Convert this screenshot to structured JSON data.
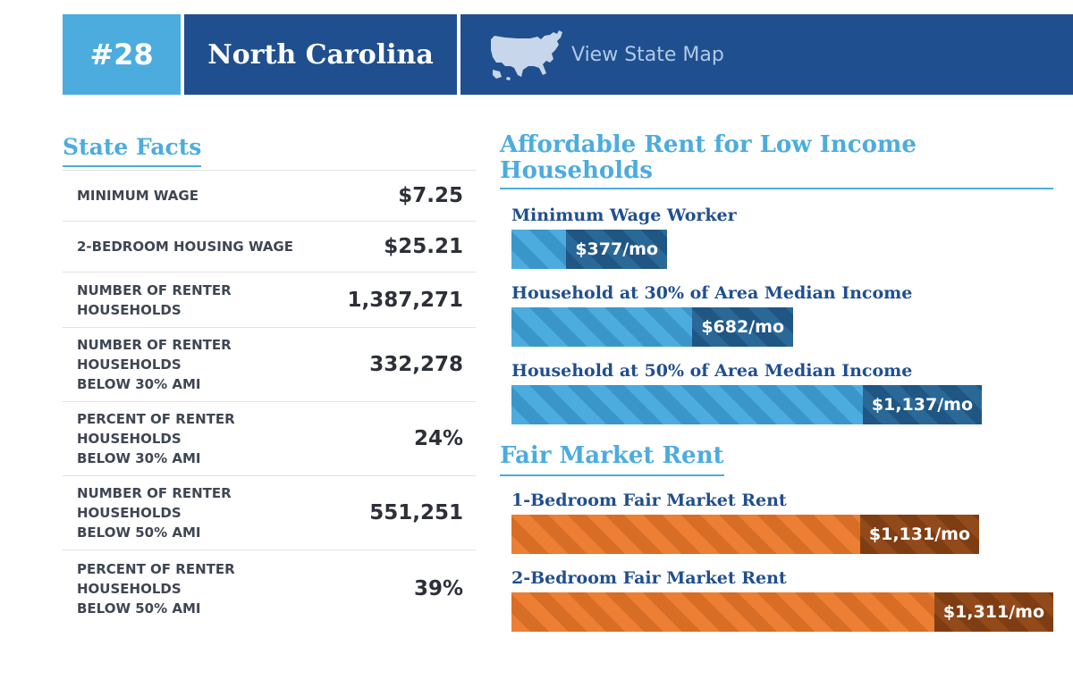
{
  "header": {
    "rank": "#28",
    "state_name": "North Carolina",
    "map_link_label": "View State Map",
    "map_icon": "us-map-icon"
  },
  "colors": {
    "light_blue": "#4cacde",
    "dark_blue": "#204f8f",
    "orange": "#ec7f33"
  },
  "state_facts": {
    "title": "State Facts",
    "rows": [
      {
        "label": "MINIMUM WAGE",
        "value": "$7.25"
      },
      {
        "label": "2-BEDROOM HOUSING WAGE",
        "value": "$25.21"
      },
      {
        "label": "NUMBER OF RENTER\nHOUSEHOLDS",
        "value": "1,387,271"
      },
      {
        "label": "NUMBER OF RENTER\nHOUSEHOLDS\nBELOW 30% AMI",
        "value": "332,278"
      },
      {
        "label": "PERCENT OF RENTER\nHOUSEHOLDS\nBELOW 30% AMI",
        "value": "24%"
      },
      {
        "label": "NUMBER OF RENTER\nHOUSEHOLDS\nBELOW 50% AMI",
        "value": "551,251"
      },
      {
        "label": "PERCENT OF RENTER\nHOUSEHOLDS\nBELOW 50% AMI",
        "value": "39%"
      }
    ]
  },
  "affordable_rent": {
    "title": "Affordable Rent for Low Income Households",
    "bars": [
      {
        "label": "Minimum Wage Worker",
        "amount": 377,
        "value_text": "$377/mo"
      },
      {
        "label": "Household at 30% of Area Median Income",
        "amount": 682,
        "value_text": "$682/mo"
      },
      {
        "label": "Household at 50% of Area Median Income",
        "amount": 1137,
        "value_text": "$1,137/mo"
      }
    ]
  },
  "fair_market_rent": {
    "title": "Fair Market Rent",
    "bars": [
      {
        "label": "1-Bedroom Fair Market Rent",
        "amount": 1131,
        "value_text": "$1,131/mo"
      },
      {
        "label": "2-Bedroom Fair Market Rent",
        "amount": 1311,
        "value_text": "$1,311/mo"
      }
    ]
  }
}
